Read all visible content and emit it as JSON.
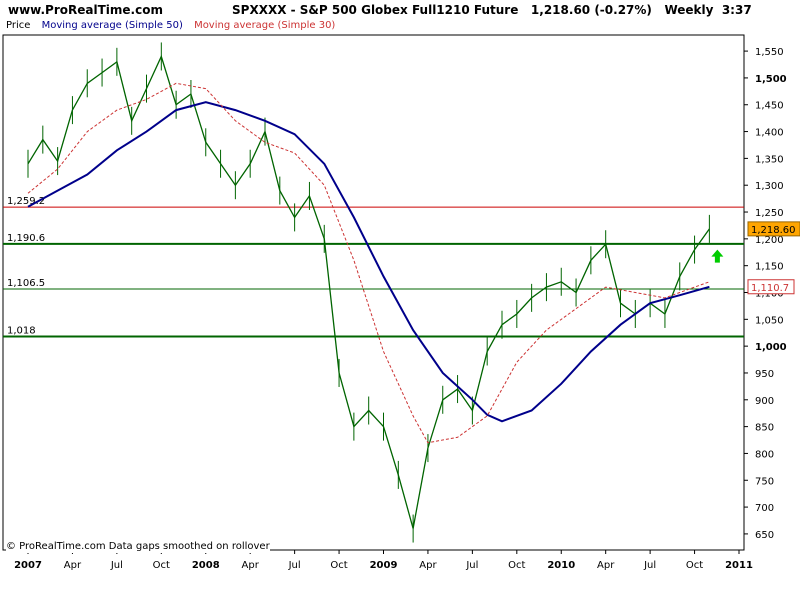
{
  "header": {
    "site": "www.ProRealTime.com",
    "title": "SPXXXX - S&P 500 Globex Full1210 Future",
    "price": "1,218.60 (-0.27%)",
    "period": "Weekly",
    "time": "3:37"
  },
  "legend": [
    {
      "label": "Price",
      "color": "#000000"
    },
    {
      "label": "Moving average (Simple 50)",
      "color": "#00008b"
    },
    {
      "label": "Moving average (Simple 30)",
      "color": "#cc3333"
    }
  ],
  "footer": "© ProRealTime.com  Data gaps smoothed on rollover",
  "chart_data": {
    "type": "line",
    "title": "SPXXXX - S&P 500 Globex Full1210 Future",
    "x_range": [
      "2007-01",
      "2011-01"
    ],
    "ylim": [
      620,
      1580
    ],
    "y_ticks": [
      650,
      700,
      750,
      800,
      850,
      900,
      950,
      1000,
      1050,
      1100,
      1150,
      1200,
      1250,
      1300,
      1350,
      1400,
      1450,
      1500,
      1550
    ],
    "y_tick_labels": [
      "650",
      "700",
      "750",
      "800",
      "850",
      "900",
      "950",
      "1,000",
      "1,050",
      "1,100",
      "1,150",
      "1,200",
      "1,250",
      "1,300",
      "1,350",
      "1,400",
      "1,450",
      "1,500",
      "1,550"
    ],
    "y_bold_ticks": [
      1000,
      1500
    ],
    "x_ticks": [
      {
        "label": "2007",
        "date": "2007-01",
        "bold": true
      },
      {
        "label": "Apr",
        "date": "2007-04"
      },
      {
        "label": "Jul",
        "date": "2007-07"
      },
      {
        "label": "Oct",
        "date": "2007-10"
      },
      {
        "label": "2008",
        "date": "2008-01",
        "bold": true
      },
      {
        "label": "Apr",
        "date": "2008-04"
      },
      {
        "label": "Jul",
        "date": "2008-07"
      },
      {
        "label": "Oct",
        "date": "2008-10"
      },
      {
        "label": "2009",
        "date": "2009-01",
        "bold": true
      },
      {
        "label": "Apr",
        "date": "2009-04"
      },
      {
        "label": "Jul",
        "date": "2009-07"
      },
      {
        "label": "Oct",
        "date": "2009-10"
      },
      {
        "label": "2010",
        "date": "2010-01",
        "bold": true
      },
      {
        "label": "Apr",
        "date": "2010-04"
      },
      {
        "label": "Jul",
        "date": "2010-07"
      },
      {
        "label": "Oct",
        "date": "2010-10"
      },
      {
        "label": "2011",
        "date": "2011-01",
        "bold": true
      }
    ],
    "horizontal_lines": [
      {
        "value": 1259.2,
        "label": "1,259.2",
        "color": "#cc0000",
        "width": 1
      },
      {
        "value": 1190.6,
        "label": "1,190.6",
        "color": "#006400",
        "width": 2
      },
      {
        "value": 1106.5,
        "label": "1,106.5",
        "color": "#006400",
        "width": 1
      },
      {
        "value": 1018,
        "label": "1,018",
        "color": "#006400",
        "width": 2
      }
    ],
    "last_price": {
      "value": 1218.6,
      "label": "1,218.60",
      "bg": "#ffa500"
    },
    "ma50_label": {
      "value": 1110.7,
      "label": "1,110.7",
      "color": "#cc3333"
    },
    "price_color": "#006400",
    "series": [
      {
        "name": "Price",
        "kind": "price",
        "color": "#006400",
        "points": [
          [
            "2007-01",
            1340
          ],
          [
            "2007-02",
            1385
          ],
          [
            "2007-03",
            1345
          ],
          [
            "2007-04",
            1440
          ],
          [
            "2007-05",
            1490
          ],
          [
            "2007-06",
            1510
          ],
          [
            "2007-07",
            1530
          ],
          [
            "2007-08",
            1420
          ],
          [
            "2007-09",
            1480
          ],
          [
            "2007-10",
            1540
          ],
          [
            "2007-11",
            1450
          ],
          [
            "2007-12",
            1470
          ],
          [
            "2008-01",
            1380
          ],
          [
            "2008-02",
            1340
          ],
          [
            "2008-03",
            1300
          ],
          [
            "2008-04",
            1340
          ],
          [
            "2008-05",
            1400
          ],
          [
            "2008-06",
            1290
          ],
          [
            "2008-07",
            1240
          ],
          [
            "2008-08",
            1280
          ],
          [
            "2008-09",
            1200
          ],
          [
            "2008-10",
            950
          ],
          [
            "2008-11",
            850
          ],
          [
            "2008-12",
            880
          ],
          [
            "2009-01",
            850
          ],
          [
            "2009-02",
            760
          ],
          [
            "2009-03",
            660
          ],
          [
            "2009-04",
            810
          ],
          [
            "2009-05",
            900
          ],
          [
            "2009-06",
            920
          ],
          [
            "2009-07",
            880
          ],
          [
            "2009-08",
            990
          ],
          [
            "2009-09",
            1040
          ],
          [
            "2009-10",
            1060
          ],
          [
            "2009-11",
            1090
          ],
          [
            "2009-12",
            1110
          ],
          [
            "2010-01",
            1120
          ],
          [
            "2010-02",
            1100
          ],
          [
            "2010-03",
            1160
          ],
          [
            "2010-04",
            1190
          ],
          [
            "2010-05",
            1080
          ],
          [
            "2010-06",
            1060
          ],
          [
            "2010-07",
            1080
          ],
          [
            "2010-08",
            1060
          ],
          [
            "2010-09",
            1130
          ],
          [
            "2010-10",
            1180
          ],
          [
            "2010-11",
            1218.6
          ]
        ]
      },
      {
        "name": "Moving average (Simple 50)",
        "kind": "ma50",
        "color": "#00008b",
        "points": [
          [
            "2007-01",
            1260
          ],
          [
            "2007-03",
            1290
          ],
          [
            "2007-05",
            1320
          ],
          [
            "2007-07",
            1365
          ],
          [
            "2007-09",
            1400
          ],
          [
            "2007-11",
            1440
          ],
          [
            "2008-01",
            1455
          ],
          [
            "2008-03",
            1440
          ],
          [
            "2008-05",
            1420
          ],
          [
            "2008-07",
            1395
          ],
          [
            "2008-09",
            1340
          ],
          [
            "2008-11",
            1240
          ],
          [
            "2009-01",
            1130
          ],
          [
            "2009-03",
            1030
          ],
          [
            "2009-05",
            950
          ],
          [
            "2009-07",
            900
          ],
          [
            "2009-08",
            872
          ],
          [
            "2009-09",
            860
          ],
          [
            "2009-11",
            880
          ],
          [
            "2010-01",
            930
          ],
          [
            "2010-03",
            990
          ],
          [
            "2010-05",
            1040
          ],
          [
            "2010-07",
            1080
          ],
          [
            "2010-09",
            1095
          ],
          [
            "2010-11",
            1110.7
          ]
        ]
      },
      {
        "name": "Moving average (Simple 30)",
        "kind": "ma30",
        "color": "#cc3333",
        "points": [
          [
            "2007-01",
            1285
          ],
          [
            "2007-03",
            1330
          ],
          [
            "2007-05",
            1400
          ],
          [
            "2007-07",
            1440
          ],
          [
            "2007-09",
            1460
          ],
          [
            "2007-11",
            1490
          ],
          [
            "2008-01",
            1480
          ],
          [
            "2008-03",
            1420
          ],
          [
            "2008-05",
            1380
          ],
          [
            "2008-07",
            1360
          ],
          [
            "2008-09",
            1300
          ],
          [
            "2008-11",
            1160
          ],
          [
            "2009-01",
            990
          ],
          [
            "2009-03",
            870
          ],
          [
            "2009-04",
            820
          ],
          [
            "2009-06",
            830
          ],
          [
            "2009-08",
            870
          ],
          [
            "2009-10",
            970
          ],
          [
            "2009-12",
            1030
          ],
          [
            "2010-02",
            1070
          ],
          [
            "2010-04",
            1110
          ],
          [
            "2010-06",
            1100
          ],
          [
            "2010-08",
            1090
          ],
          [
            "2010-10",
            1110
          ],
          [
            "2010-11",
            1120
          ]
        ]
      }
    ]
  }
}
